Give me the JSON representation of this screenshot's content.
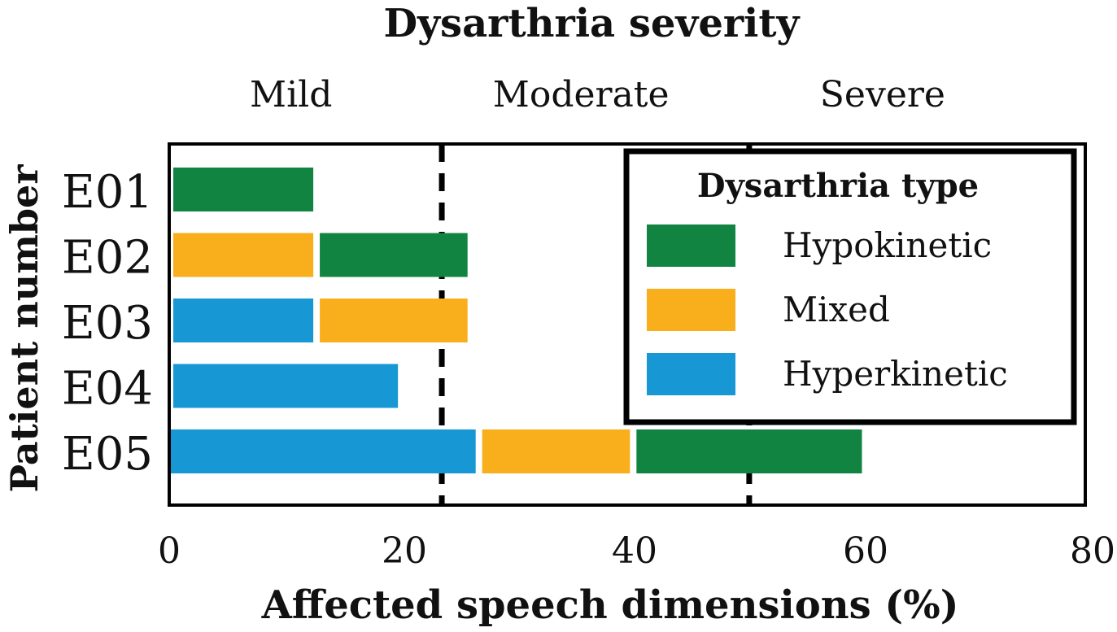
{
  "chart_data": {
    "type": "bar",
    "orientation": "horizontal",
    "stacked": true,
    "title": "Dysarthria severity",
    "xlabel": "Affected speech dimensions (%)",
    "ylabel": "Patient number",
    "xlim": [
      0,
      80
    ],
    "xticks": [
      0,
      20,
      40,
      60,
      80
    ],
    "categories": [
      "E01",
      "E02",
      "E03",
      "E04",
      "E05"
    ],
    "severity_thresholds": [
      23.5,
      50
    ],
    "severity_labels": [
      {
        "label": "Mild",
        "x": 10.5
      },
      {
        "label": "Moderate",
        "x": 35.5
      },
      {
        "label": "Severe",
        "x": 61.5
      }
    ],
    "legend": {
      "title": "Dysarthria type",
      "placement": "top-right",
      "entries": [
        {
          "name": "Hypokinetic",
          "color": "#118442"
        },
        {
          "name": "Mixed",
          "color": "#f9ae1c"
        },
        {
          "name": "Hyperkinetic",
          "color": "#1897d5"
        }
      ]
    },
    "bars": [
      {
        "category": "E01",
        "segments": [
          {
            "type": "Hypokinetic",
            "value": 12.7
          }
        ]
      },
      {
        "category": "E02",
        "segments": [
          {
            "type": "Mixed",
            "value": 12.7
          },
          {
            "type": "Hypokinetic",
            "value": 13.3
          }
        ]
      },
      {
        "category": "E03",
        "segments": [
          {
            "type": "Hyperkinetic",
            "value": 12.7
          },
          {
            "type": "Mixed",
            "value": 13.3
          }
        ]
      },
      {
        "category": "E04",
        "segments": [
          {
            "type": "Hyperkinetic",
            "value": 20
          }
        ]
      },
      {
        "category": "E05",
        "segments": [
          {
            "type": "Hyperkinetic",
            "value": 26.7
          },
          {
            "type": "Mixed",
            "value": 13.3
          },
          {
            "type": "Hypokinetic",
            "value": 20
          }
        ]
      }
    ],
    "grid": false
  }
}
